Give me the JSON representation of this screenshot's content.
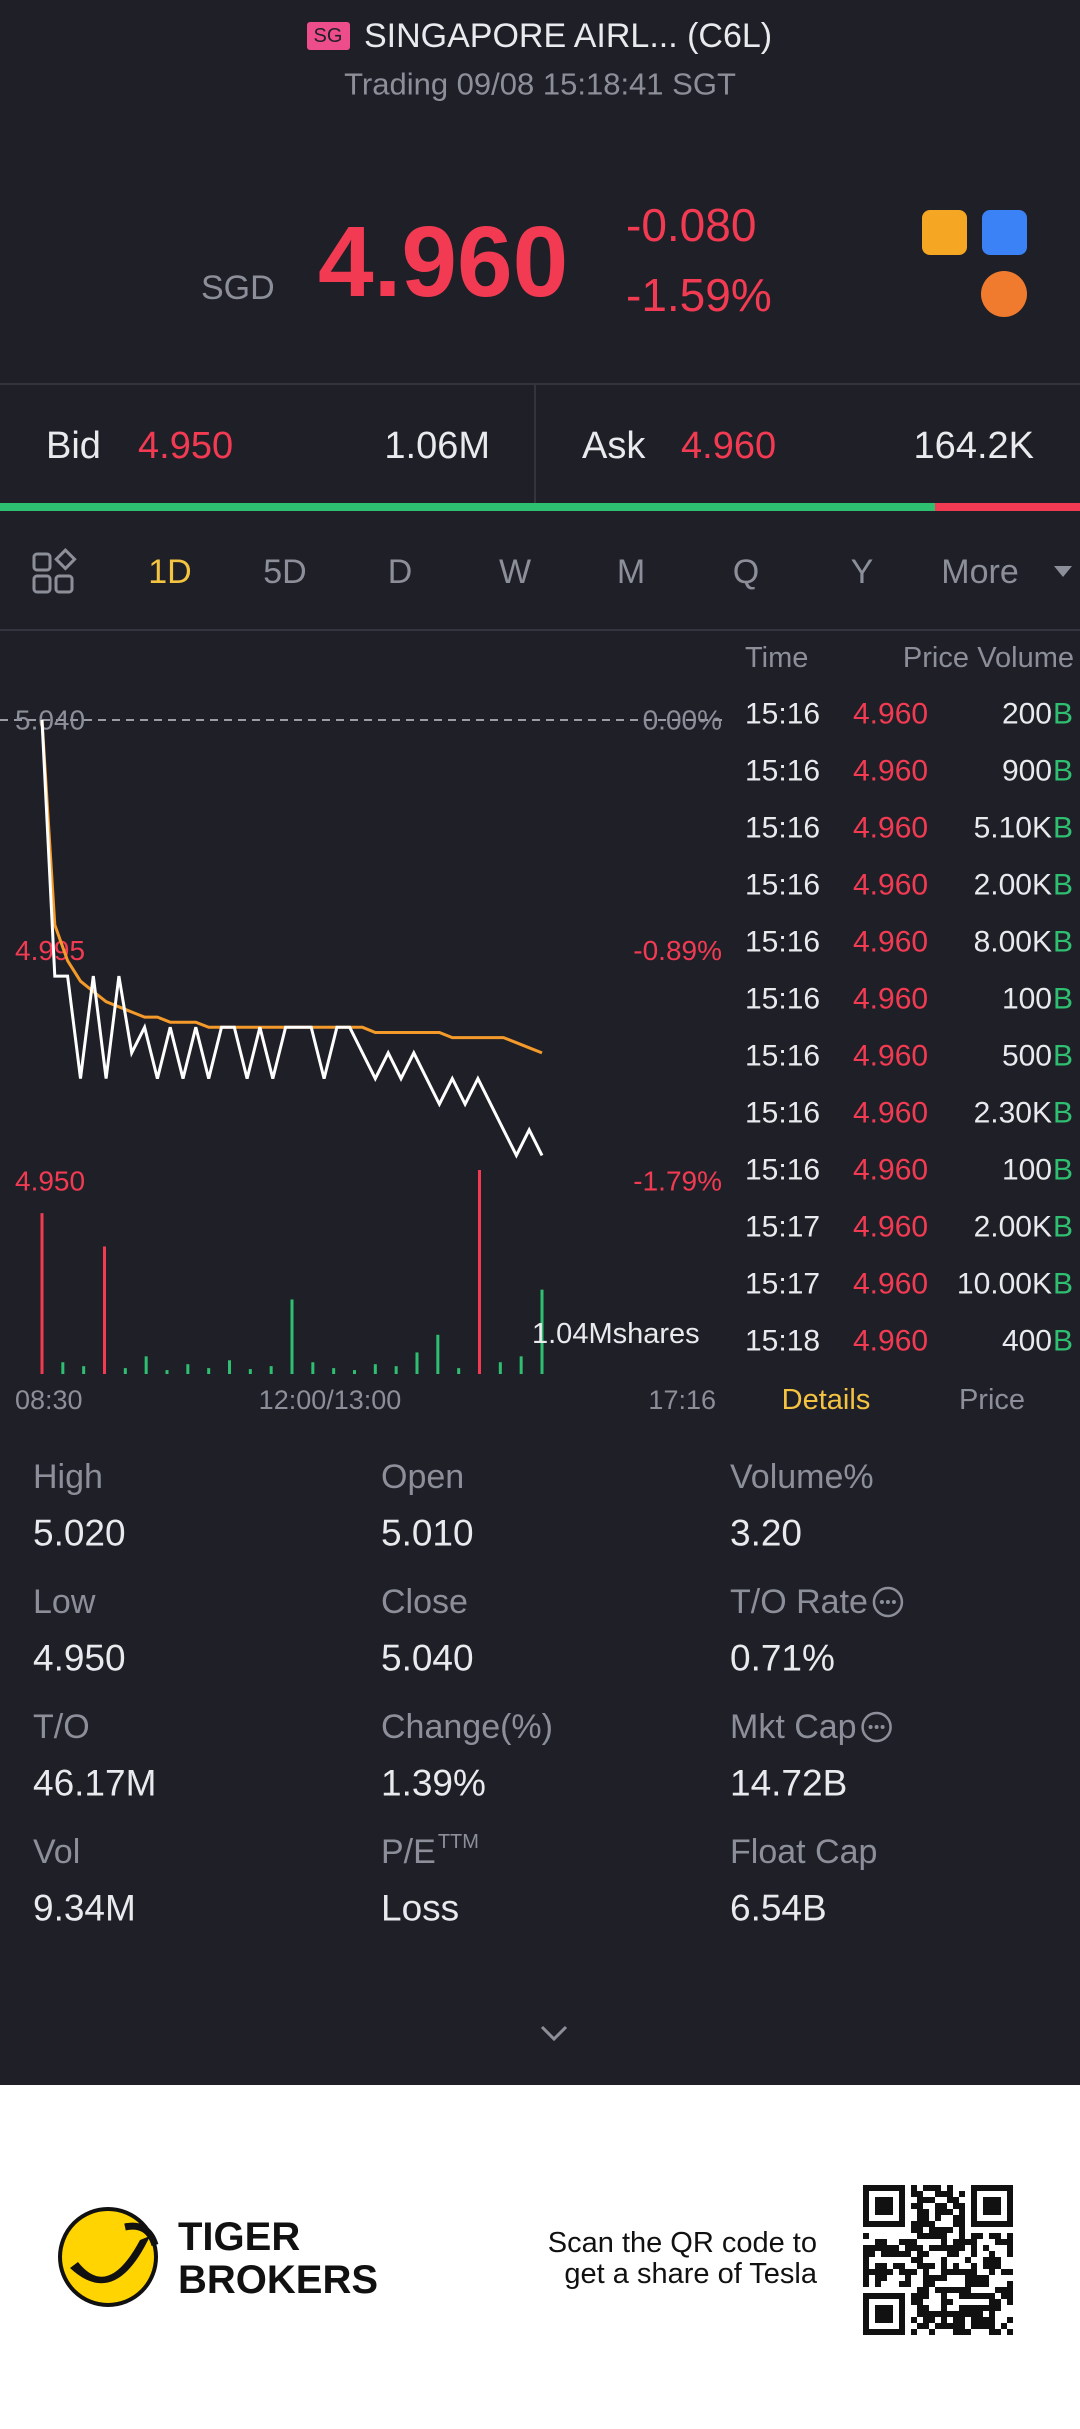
{
  "header": {
    "market": "SG",
    "title": "SINGAPORE AIRL... (C6L)",
    "status": "Trading 09/08 15:18:41 SGT"
  },
  "quote": {
    "currency": "SGD",
    "price": "4.960",
    "change": "-0.080",
    "change_pct": "-1.59%"
  },
  "depth": {
    "bid_label": "Bid",
    "bid_price": "4.950",
    "bid_size": "1.06M",
    "ask_label": "Ask",
    "ask_price": "4.960",
    "ask_size": "164.2K"
  },
  "tabs": [
    "1D",
    "5D",
    "D",
    "W",
    "M",
    "Q",
    "Y",
    "More"
  ],
  "intraday": {
    "ylim": [
      4.95,
      5.04
    ],
    "yticks": [
      {
        "value": 5.04,
        "label": "5.040"
      },
      {
        "value": 4.995,
        "label": "4.995"
      },
      {
        "value": 4.95,
        "label": "4.950"
      }
    ],
    "pct_ticks": [
      "0.00%",
      "-0.89%",
      "-1.79%"
    ],
    "time_labels": [
      "08:30",
      "12:00/13:00",
      "17:16"
    ],
    "volume_label": "1.04Mshares",
    "price": [
      5.04,
      4.99,
      4.99,
      4.97,
      4.99,
      4.97,
      4.99,
      4.975,
      4.98,
      4.97,
      4.98,
      4.97,
      4.98,
      4.97,
      4.98,
      4.98,
      4.97,
      4.98,
      4.97,
      4.98,
      4.98,
      4.98,
      4.97,
      4.98,
      4.98,
      4.975,
      4.97,
      4.975,
      4.97,
      4.975,
      4.97,
      4.965,
      4.97,
      4.965,
      4.97,
      4.965,
      4.96,
      4.955,
      4.96,
      4.955
    ],
    "price_color": "#ffffff",
    "avg": [
      5.04,
      5.0,
      4.993,
      4.989,
      4.987,
      4.985,
      4.984,
      4.983,
      4.982,
      4.982,
      4.981,
      4.981,
      4.981,
      4.98,
      4.98,
      4.98,
      4.98,
      4.98,
      4.98,
      4.98,
      4.98,
      4.98,
      4.98,
      4.98,
      4.98,
      4.98,
      4.979,
      4.979,
      4.979,
      4.979,
      4.979,
      4.979,
      4.978,
      4.978,
      4.978,
      4.978,
      4.978,
      4.977,
      4.976,
      4.975
    ],
    "avg_color": "#f39a2b",
    "volumes": [
      820000,
      60000,
      40000,
      650000,
      30000,
      90000,
      20000,
      50000,
      30000,
      70000,
      25000,
      40000,
      380000,
      60000,
      30000,
      20000,
      50000,
      40000,
      110000,
      200000,
      30000,
      1040000,
      60000,
      90000,
      430000
    ],
    "volume_colors": [
      "#f23a52",
      "#2fbf71",
      "#2fbf71",
      "#f23a52",
      "#2fbf71",
      "#2fbf71",
      "#2fbf71",
      "#2fbf71",
      "#2fbf71",
      "#2fbf71",
      "#2fbf71",
      "#2fbf71",
      "#2fbf71",
      "#2fbf71",
      "#2fbf71",
      "#2fbf71",
      "#2fbf71",
      "#2fbf71",
      "#2fbf71",
      "#2fbf71",
      "#2fbf71",
      "#f23a52",
      "#2fbf71",
      "#2fbf71",
      "#2fbf71"
    ]
  },
  "trades": {
    "headers": [
      "Time",
      "Price",
      "Volume"
    ],
    "rows": [
      {
        "time": "15:16",
        "price": "4.960",
        "volume": "200",
        "side": "B"
      },
      {
        "time": "15:16",
        "price": "4.960",
        "volume": "900",
        "side": "B"
      },
      {
        "time": "15:16",
        "price": "4.960",
        "volume": "5.10K",
        "side": "B"
      },
      {
        "time": "15:16",
        "price": "4.960",
        "volume": "2.00K",
        "side": "B"
      },
      {
        "time": "15:16",
        "price": "4.960",
        "volume": "8.00K",
        "side": "B"
      },
      {
        "time": "15:16",
        "price": "4.960",
        "volume": "100",
        "side": "B"
      },
      {
        "time": "15:16",
        "price": "4.960",
        "volume": "500",
        "side": "B"
      },
      {
        "time": "15:16",
        "price": "4.960",
        "volume": "2.30K",
        "side": "B"
      },
      {
        "time": "15:16",
        "price": "4.960",
        "volume": "100",
        "side": "B"
      },
      {
        "time": "15:17",
        "price": "4.960",
        "volume": "2.00K",
        "side": "B"
      },
      {
        "time": "15:17",
        "price": "4.960",
        "volume": "10.00K",
        "side": "B"
      },
      {
        "time": "15:18",
        "price": "4.960",
        "volume": "400",
        "side": "B"
      }
    ],
    "tabs": [
      "Details",
      "Price"
    ]
  },
  "stats": [
    {
      "label": "High",
      "value": "5.020"
    },
    {
      "label": "Open",
      "value": "5.010"
    },
    {
      "label": "Volume%",
      "value": "3.20"
    },
    {
      "label": "Low",
      "value": "4.950"
    },
    {
      "label": "Close",
      "value": "5.040"
    },
    {
      "label": "T/O Rate",
      "value": "0.71%"
    },
    {
      "label": "T/O",
      "value": "46.17M"
    },
    {
      "label": "Change(%)",
      "value": "1.39%"
    },
    {
      "label": "Mkt Cap",
      "value": "14.72B"
    },
    {
      "label": "Vol",
      "value": "9.34M"
    },
    {
      "label": "P/E",
      "sup": "TTM",
      "value": "Loss"
    },
    {
      "label": "Float Cap",
      "value": "6.54B"
    }
  ],
  "footer": {
    "brand": [
      "TIGER",
      "BROKERS"
    ],
    "promo": [
      "Scan the QR code to",
      "get a share of Tesla"
    ]
  }
}
